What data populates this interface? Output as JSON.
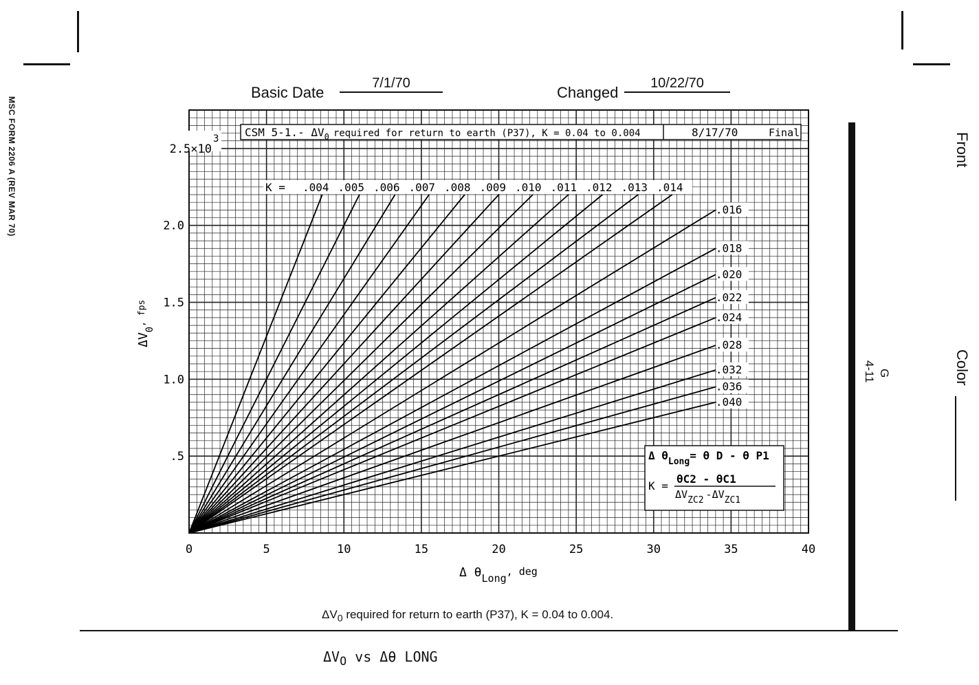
{
  "form_id": "MSC FORM 2206 A (REV MAR 70)",
  "header": {
    "basic_date_label": "Basic Date",
    "basic_date_value": "7/1/70",
    "changed_label": "Changed",
    "changed_value": "10/22/70"
  },
  "right_margin": {
    "front_label": "Front",
    "color_label": "Color",
    "page_section": "G",
    "page_number": "4-11"
  },
  "chart_data": {
    "type": "line",
    "title": "CSM 5-1.- ΔV",
    "title_sub": "0",
    "title_rest": "required for return to earth (P37), K = 0.04 to 0.004",
    "title_date": "8/17/70",
    "title_status": "Final",
    "xlabel": "Δ θ",
    "xlabel_sub": "Long",
    "xlabel_unit": ", deg",
    "ylabel": "ΔV",
    "ylabel_sub": "0",
    "ylabel_unit": ", fps",
    "xlim": [
      0,
      40
    ],
    "ylim": [
      0,
      2750
    ],
    "x_ticks": [
      {
        "value": 0,
        "label": "0"
      },
      {
        "value": 5,
        "label": "5"
      },
      {
        "value": 10,
        "label": "10"
      },
      {
        "value": 15,
        "label": "15"
      },
      {
        "value": 20,
        "label": "20"
      },
      {
        "value": 25,
        "label": "25"
      },
      {
        "value": 30,
        "label": "30"
      },
      {
        "value": 35,
        "label": "35"
      },
      {
        "value": 40,
        "label": "40"
      }
    ],
    "y_ticks": [
      {
        "value": 500,
        "label": ".5"
      },
      {
        "value": 1000,
        "label": "1.0"
      },
      {
        "value": 1500,
        "label": "1.5"
      },
      {
        "value": 2000,
        "label": "2.0"
      },
      {
        "value": 2500,
        "label": "2.5×10"
      }
    ],
    "y_exponent": "3",
    "k_prefix": "K =",
    "series": [
      {
        "name": ".004",
        "x": [
          0,
          8.6
        ],
        "y": [
          0,
          2200
        ]
      },
      {
        "name": ".005",
        "x": [
          0,
          11.0
        ],
        "y": [
          0,
          2200
        ]
      },
      {
        "name": ".006",
        "x": [
          0,
          13.3
        ],
        "y": [
          0,
          2200
        ]
      },
      {
        "name": ".007",
        "x": [
          0,
          15.5
        ],
        "y": [
          0,
          2200
        ]
      },
      {
        "name": ".008",
        "x": [
          0,
          17.8
        ],
        "y": [
          0,
          2200
        ]
      },
      {
        "name": ".009",
        "x": [
          0,
          20.0
        ],
        "y": [
          0,
          2200
        ]
      },
      {
        "name": ".010",
        "x": [
          0,
          22.2
        ],
        "y": [
          0,
          2200
        ]
      },
      {
        "name": ".011",
        "x": [
          0,
          24.5
        ],
        "y": [
          0,
          2200
        ]
      },
      {
        "name": ".012",
        "x": [
          0,
          26.7
        ],
        "y": [
          0,
          2200
        ]
      },
      {
        "name": ".013",
        "x": [
          0,
          29.0
        ],
        "y": [
          0,
          2200
        ]
      },
      {
        "name": ".014",
        "x": [
          0,
          31.2
        ],
        "y": [
          0,
          2200
        ]
      },
      {
        "name": ".016",
        "x": [
          0,
          34.0
        ],
        "y": [
          0,
          2100
        ]
      },
      {
        "name": ".018",
        "x": [
          0,
          34.0
        ],
        "y": [
          0,
          1850
        ]
      },
      {
        "name": ".020",
        "x": [
          0,
          34.0
        ],
        "y": [
          0,
          1680
        ]
      },
      {
        "name": ".022",
        "x": [
          0,
          34.0
        ],
        "y": [
          0,
          1530
        ]
      },
      {
        "name": ".024",
        "x": [
          0,
          34.0
        ],
        "y": [
          0,
          1400
        ]
      },
      {
        "name": ".028",
        "x": [
          0,
          34.0
        ],
        "y": [
          0,
          1220
        ]
      },
      {
        "name": ".032",
        "x": [
          0,
          34.0
        ],
        "y": [
          0,
          1060
        ]
      },
      {
        "name": ".036",
        "x": [
          0,
          34.0
        ],
        "y": [
          0,
          950
        ]
      },
      {
        "name": ".040",
        "x": [
          0,
          34.0
        ],
        "y": [
          0,
          850
        ]
      }
    ],
    "legend_right_labels": [
      {
        "name": ".016",
        "y": 2100
      },
      {
        "name": ".018",
        "y": 1850
      },
      {
        "name": ".020",
        "y": 1680
      },
      {
        "name": ".022",
        "y": 1530
      },
      {
        "name": ".024",
        "y": 1400
      },
      {
        "name": ".028",
        "y": 1220
      },
      {
        "name": ".032",
        "y": 1060
      },
      {
        "name": ".036",
        "y": 950
      },
      {
        "name": ".040",
        "y": 850
      }
    ],
    "formula_1_lhs": "Δ θ",
    "formula_1_lhs_sub": "Long",
    "formula_1_rhs": "= θ D - θ P1",
    "formula_2_lhs": "K =",
    "formula_2_num": "θC2 - θC1",
    "formula_2_den_a": "ΔV",
    "formula_2_den_a_sub": "ZC2",
    "formula_2_den_b": "-ΔV",
    "formula_2_den_b_sub": "ZC1",
    "grid": true
  },
  "caption": {
    "lead": "ΔV",
    "lead_sub": "0",
    "text": "required for return to earth (P37), K = 0.04 to 0.004."
  },
  "bottom_title": {
    "lead": "ΔV",
    "lead_sub": "O",
    "text": "vs Δθ LONG"
  }
}
